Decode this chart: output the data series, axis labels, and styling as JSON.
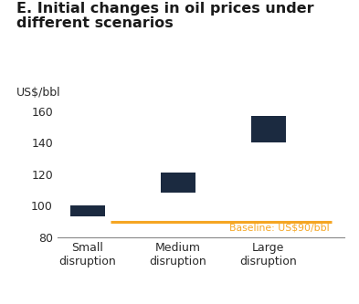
{
  "title_line1": "E. Initial changes in oil prices under",
  "title_line2": "different scenarios",
  "ylabel": "US$/bbl",
  "ylim": [
    80,
    165
  ],
  "yticks": [
    80,
    100,
    120,
    140,
    160
  ],
  "categories": [
    "Small\ndisruption",
    "Medium\ndisruption",
    "Large\ndisruption"
  ],
  "bar_bottoms": [
    93,
    108,
    140
  ],
  "bar_tops": [
    100,
    121,
    157
  ],
  "bar_color": "#1b2a40",
  "baseline_y": 90,
  "baseline_label": "Baseline: US$90/bbl",
  "baseline_color": "#f5a623",
  "background_color": "#ffffff",
  "title_fontsize": 11.5,
  "title_color": "#1a1a1a",
  "tick_fontsize": 9,
  "bar_width": 0.38
}
